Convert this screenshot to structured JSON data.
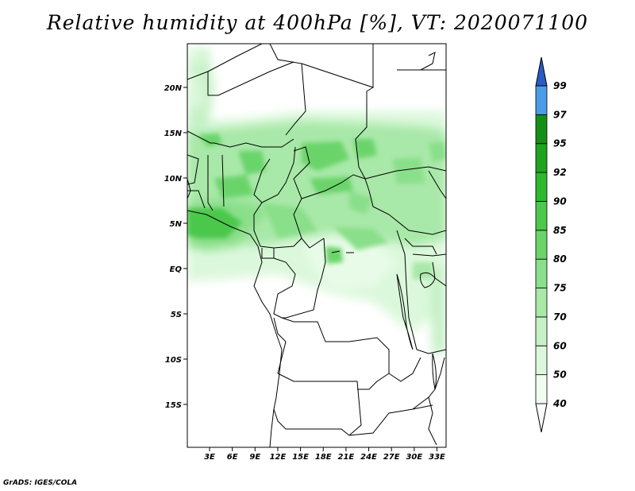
{
  "title": "Relative humidity at 400hPa [%], VT: 2020071100",
  "credit": "GrADS: IGES/COLA",
  "map": {
    "lat_range": [
      -20,
      25
    ],
    "lon_range": [
      0,
      35
    ],
    "lat_ticks": [
      {
        "value": 20,
        "label": "20N"
      },
      {
        "value": 15,
        "label": "15N"
      },
      {
        "value": 10,
        "label": "10N"
      },
      {
        "value": 5,
        "label": "5N"
      },
      {
        "value": 0,
        "label": "EQ"
      },
      {
        "value": -5,
        "label": "5S"
      },
      {
        "value": -10,
        "label": "10S"
      },
      {
        "value": -15,
        "label": "15S"
      }
    ],
    "lon_ticks": [
      {
        "value": 3,
        "label": "3E"
      },
      {
        "value": 6,
        "label": "6E"
      },
      {
        "value": 9,
        "label": "9E"
      },
      {
        "value": 12,
        "label": "12E"
      },
      {
        "value": 15,
        "label": "15E"
      },
      {
        "value": 18,
        "label": "18E"
      },
      {
        "value": 21,
        "label": "21E"
      },
      {
        "value": 24,
        "label": "24E"
      },
      {
        "value": 27,
        "label": "27E"
      },
      {
        "value": 30,
        "label": "30E"
      },
      {
        "value": 33,
        "label": "33E"
      }
    ]
  },
  "colorbar": {
    "levels": [
      "40",
      "50",
      "60",
      "70",
      "75",
      "80",
      "85",
      "90",
      "92",
      "95",
      "97",
      "99"
    ],
    "colors": [
      "#f0fdf0",
      "#dcf8dc",
      "#c6f1c6",
      "#a8e8a8",
      "#8adf8a",
      "#6ad46a",
      "#4cc84c",
      "#2eb82e",
      "#1ea41e",
      "#168f16",
      "#4a9be8",
      "#2d6fd8",
      "#2a5bc4"
    ]
  },
  "colors": {
    "boundary": "#000000",
    "frame": "#000000"
  }
}
